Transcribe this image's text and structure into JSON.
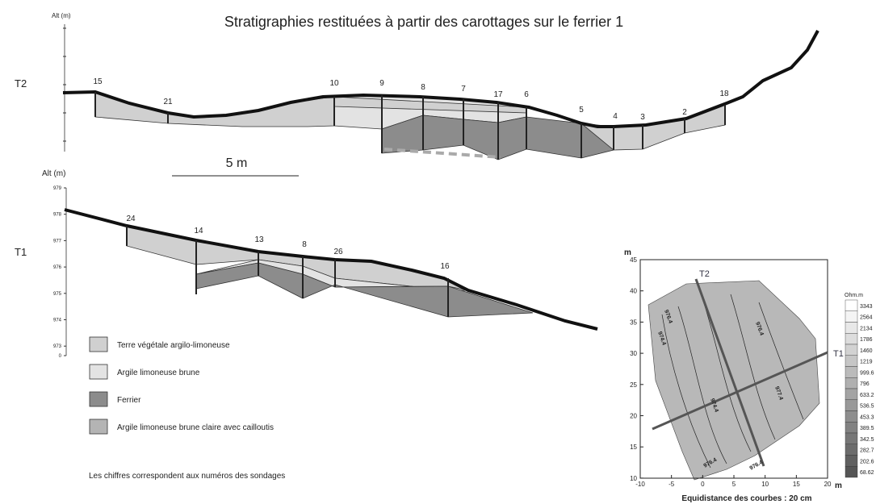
{
  "title": "Stratigraphies restituées à partir des carottages sur le ferrier 1",
  "profiles": [
    {
      "name": "T2",
      "axis_label": "Alt (m)",
      "soundings": [
        "15",
        "21",
        "10",
        "9",
        "8",
        "7",
        "17",
        "6",
        "5",
        "4",
        "3",
        "2",
        "18"
      ]
    },
    {
      "name": "T1",
      "axis_label": "Alt (m)",
      "ticks": [
        "979",
        "978",
        "977",
        "976",
        "975",
        "974",
        "973",
        "0"
      ],
      "soundings": [
        "24",
        "14",
        "13",
        "8",
        "26",
        "16"
      ]
    }
  ],
  "scale_bar": "5 m",
  "legend": [
    "Terre végétale argilo-limoneuse",
    "Argile limoneuse brune",
    "Ferrier",
    "Argile limoneuse brune claire avec cailloutis"
  ],
  "note": "Les chiffres correspondent aux numéros des sondages",
  "map": {
    "y_unit": "m",
    "x_unit": "m",
    "yticks": [
      "45",
      "40",
      "35",
      "30",
      "25",
      "20",
      "15",
      "10"
    ],
    "xticks": [
      "-10",
      "-5",
      "0",
      "5",
      "10",
      "15",
      "20"
    ],
    "lines": [
      "T2",
      "T1"
    ],
    "contours": [
      "976.4",
      "974.4",
      "976.4",
      "977.4",
      "974.4",
      "976.4",
      "976.4"
    ],
    "colorbar_title": "Ohm.m",
    "colorbar": [
      "3343",
      "2564",
      "2134",
      "1786",
      "1460",
      "1219",
      "999.6",
      "796",
      "633.2",
      "536.5",
      "453.3",
      "389.5",
      "342.5",
      "282.7",
      "202.6",
      "68.62"
    ],
    "caption": "Equidistance des courbes : 20 cm"
  }
}
